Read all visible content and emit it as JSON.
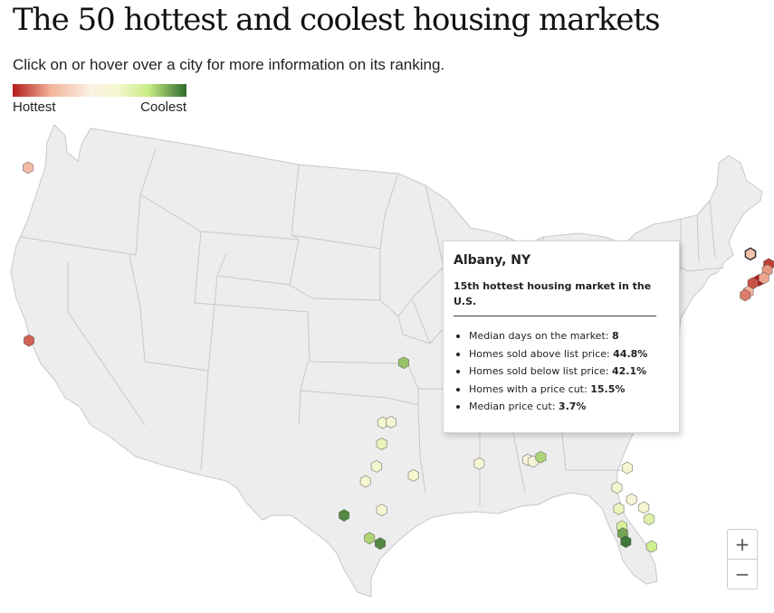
{
  "header": {
    "title": "The 50 hottest and coolest housing markets",
    "subtitle": "Click on or hover over a city for more information on its ranking."
  },
  "legend": {
    "low_label": "Hottest",
    "high_label": "Coolest",
    "colors": [
      "#b31b1b",
      "#f2b49a",
      "#fbf1e4",
      "#f4f7cf",
      "#c9ec86",
      "#2f6b2d"
    ]
  },
  "map": {
    "region": "Contiguous United States",
    "land_color": "#eeeeee",
    "border_color": "#c8c8c8",
    "marker_shape": "hexagon",
    "markers_note": "heat scale 0 = hottest (red) ... 1 = coolest (green); lon/lat are geographic coordinates",
    "markers": [
      {
        "lon": -122.33,
        "lat": 47.61,
        "heat": 0.25
      },
      {
        "lon": -122.27,
        "lat": 37.8,
        "heat": 0.1
      },
      {
        "lon": -73.76,
        "lat": 42.65,
        "heat": 0.28,
        "selected": true
      },
      {
        "lon": -72.59,
        "lat": 42.1,
        "heat": 0.05
      },
      {
        "lon": -71.8,
        "lat": 42.27,
        "heat": 0.18
      },
      {
        "lon": -72.68,
        "lat": 41.76,
        "heat": 0.18
      },
      {
        "lon": -71.41,
        "lat": 41.82,
        "heat": 0.22
      },
      {
        "lon": -73.2,
        "lat": 41.18,
        "heat": 0.0
      },
      {
        "lon": -73.6,
        "lat": 41.0,
        "heat": 0.08
      },
      {
        "lon": -72.9,
        "lat": 41.31,
        "heat": 0.2
      },
      {
        "lon": -73.9,
        "lat": 40.5,
        "heat": 0.22
      },
      {
        "lon": -74.1,
        "lat": 40.3,
        "heat": 0.14
      },
      {
        "lon": -95.99,
        "lat": 36.15,
        "heat": 0.85
      },
      {
        "lon": -97.33,
        "lat": 32.75,
        "heat": 0.6
      },
      {
        "lon": -96.8,
        "lat": 32.78,
        "heat": 0.55
      },
      {
        "lon": -97.4,
        "lat": 31.55,
        "heat": 0.65
      },
      {
        "lon": -97.74,
        "lat": 30.27,
        "heat": 0.6
      },
      {
        "lon": -95.37,
        "lat": 29.76,
        "heat": 0.6
      },
      {
        "lon": -98.49,
        "lat": 29.42,
        "heat": 0.58
      },
      {
        "lon": -100.0,
        "lat": 27.5,
        "heat": 0.95
      },
      {
        "lon": -97.4,
        "lat": 27.8,
        "heat": 0.55
      },
      {
        "lon": -98.2,
        "lat": 26.2,
        "heat": 0.82
      },
      {
        "lon": -97.5,
        "lat": 25.9,
        "heat": 0.95
      },
      {
        "lon": -91.15,
        "lat": 30.45,
        "heat": 0.55
      },
      {
        "lon": -88.04,
        "lat": 30.69,
        "heat": 0.5
      },
      {
        "lon": -87.7,
        "lat": 30.6,
        "heat": 0.55
      },
      {
        "lon": -87.2,
        "lat": 30.85,
        "heat": 0.82
      },
      {
        "lon": -81.66,
        "lat": 30.33,
        "heat": 0.6
      },
      {
        "lon": -82.32,
        "lat": 29.2,
        "heat": 0.6
      },
      {
        "lon": -81.38,
        "lat": 28.54,
        "heat": 0.55
      },
      {
        "lon": -82.2,
        "lat": 28.0,
        "heat": 0.65
      },
      {
        "lon": -80.6,
        "lat": 28.1,
        "heat": 0.6
      },
      {
        "lon": -80.25,
        "lat": 27.45,
        "heat": 0.7
      },
      {
        "lon": -82.0,
        "lat": 27.0,
        "heat": 0.72
      },
      {
        "lon": -81.95,
        "lat": 26.6,
        "heat": 0.9
      },
      {
        "lon": -81.75,
        "lat": 26.14,
        "heat": 0.98
      },
      {
        "lon": -80.1,
        "lat": 25.9,
        "heat": 0.75
      }
    ]
  },
  "tooltip": {
    "city": "Albany, NY",
    "rank_text": "15th hottest housing market in the U.S.",
    "stats": [
      {
        "label": "Median days on the market:",
        "value": "8"
      },
      {
        "label": "Homes sold above list price:",
        "value": "44.8%"
      },
      {
        "label": "Homes sold below list price:",
        "value": "42.1%"
      },
      {
        "label": "Homes with a price cut:",
        "value": "15.5%"
      },
      {
        "label": "Median price cut:",
        "value": "3.7%"
      }
    ]
  },
  "zoom": {
    "zoom_in_label": "+",
    "zoom_out_label": "−"
  }
}
